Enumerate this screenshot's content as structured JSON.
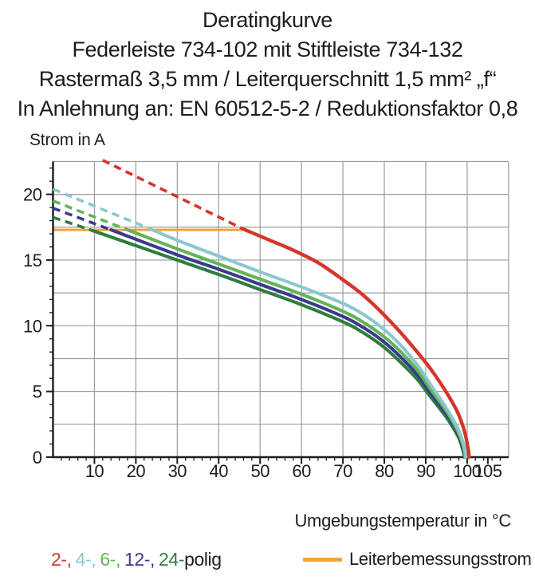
{
  "title": {
    "lines": [
      "Deratingkurve",
      "Federleiste 734-102 mit Stiftleiste 734-132",
      "Rastermaß 3,5 mm / Leiterquerschnitt 1,5 mm² „f“",
      "In Anlehnung an: EN 60512-5-2 / Reduktionsfaktor 0,8"
    ]
  },
  "chart_data": {
    "type": "line",
    "title": "Deratingkurve",
    "xlabel": "Umgebungstemperatur in °C",
    "ylabel": "Strom in A",
    "xlim": [
      0,
      110.5
    ],
    "ylim": [
      0,
      22.5
    ],
    "grid": "on",
    "x_major_ticks": [
      10,
      20,
      30,
      40,
      50,
      60,
      70,
      80,
      90,
      100,
      105
    ],
    "y_major_ticks": [
      0,
      5,
      10,
      15,
      20
    ],
    "x_minor_step": 2,
    "y_minor_step": 1,
    "x_gridline_step": 10,
    "y_gridline_step": 2.5,
    "grid_color": "#9b9b9b",
    "axis_color": "#1d1d1b",
    "series": [
      {
        "name": "2-polig",
        "color": "#d6352b",
        "dashed": [
          [
            12,
            22.6
          ],
          [
            46,
            17.35
          ]
        ],
        "solid": [
          [
            46,
            17.35
          ],
          [
            52,
            16.55
          ],
          [
            58,
            15.75
          ],
          [
            64,
            14.8
          ],
          [
            70,
            13.5
          ],
          [
            75,
            12.3
          ],
          [
            80,
            10.8
          ],
          [
            85,
            9.1
          ],
          [
            90,
            7.2
          ],
          [
            93,
            5.9
          ],
          [
            96,
            4.4
          ],
          [
            98,
            3.2
          ],
          [
            99.5,
            1.8
          ],
          [
            100.3,
            0.5
          ],
          [
            100.45,
            0
          ]
        ]
      },
      {
        "name": "4-polig",
        "color": "#8ac8cb",
        "dashed": [
          [
            0,
            20.4
          ],
          [
            24,
            17.3
          ]
        ],
        "solid": [
          [
            24,
            17.3
          ],
          [
            30,
            16.5
          ],
          [
            40,
            15.3
          ],
          [
            50,
            14.1
          ],
          [
            60,
            12.95
          ],
          [
            70,
            11.7
          ],
          [
            75,
            10.85
          ],
          [
            80,
            9.7
          ],
          [
            84,
            8.5
          ],
          [
            88,
            7.0
          ],
          [
            91,
            5.6
          ],
          [
            94,
            4.2
          ],
          [
            96,
            3.2
          ],
          [
            98,
            2.0
          ],
          [
            99.3,
            0.8
          ],
          [
            99.65,
            0
          ]
        ]
      },
      {
        "name": "6-polig",
        "color": "#62b456",
        "dashed": [
          [
            0,
            19.5
          ],
          [
            18,
            17.3
          ]
        ],
        "solid": [
          [
            18,
            17.3
          ],
          [
            30,
            15.85
          ],
          [
            40,
            14.7
          ],
          [
            50,
            13.55
          ],
          [
            60,
            12.4
          ],
          [
            70,
            11.1
          ],
          [
            75,
            10.25
          ],
          [
            80,
            9.15
          ],
          [
            84,
            8.0
          ],
          [
            88,
            6.6
          ],
          [
            91,
            5.25
          ],
          [
            94,
            3.95
          ],
          [
            96,
            3.0
          ],
          [
            98,
            1.8
          ],
          [
            99.2,
            0.7
          ],
          [
            99.5,
            0
          ]
        ]
      },
      {
        "name": "12-polig",
        "color": "#3a3a8e",
        "dashed": [
          [
            0,
            18.95
          ],
          [
            14,
            17.3
          ]
        ],
        "solid": [
          [
            14,
            17.3
          ],
          [
            30,
            15.4
          ],
          [
            40,
            14.3
          ],
          [
            50,
            13.15
          ],
          [
            60,
            12.0
          ],
          [
            70,
            10.7
          ],
          [
            75,
            9.85
          ],
          [
            80,
            8.75
          ],
          [
            84,
            7.6
          ],
          [
            88,
            6.25
          ],
          [
            91,
            4.95
          ],
          [
            94,
            3.7
          ],
          [
            96,
            2.8
          ],
          [
            98,
            1.65
          ],
          [
            99.1,
            0.6
          ],
          [
            99.4,
            0
          ]
        ]
      },
      {
        "name": "24-polig",
        "color": "#2f7d3e",
        "dashed": [
          [
            0,
            18.25
          ],
          [
            9,
            17.3
          ]
        ],
        "solid": [
          [
            9,
            17.3
          ],
          [
            30,
            15.0
          ],
          [
            40,
            13.9
          ],
          [
            50,
            12.75
          ],
          [
            60,
            11.6
          ],
          [
            70,
            10.3
          ],
          [
            75,
            9.45
          ],
          [
            80,
            8.35
          ],
          [
            84,
            7.2
          ],
          [
            88,
            5.9
          ],
          [
            91,
            4.65
          ],
          [
            94,
            3.45
          ],
          [
            96,
            2.55
          ],
          [
            98,
            1.45
          ],
          [
            99,
            0.5
          ],
          [
            99.3,
            0
          ]
        ]
      }
    ],
    "reference_line": {
      "label": "Leiterbemessungsstrom",
      "value": 17.3,
      "x_range": [
        0,
        46
      ],
      "color": "#f2a23f"
    }
  },
  "legend": {
    "pole_segments": [
      {
        "label": "2-,",
        "color": "#d6352b"
      },
      {
        "label": "4-,",
        "color": "#8ac8cb"
      },
      {
        "label": "6-,",
        "color": "#62b456"
      },
      {
        "label": "12-,",
        "color": "#3a3a8e"
      },
      {
        "label": "24-",
        "color": "#2f7d3e"
      }
    ],
    "suffix": "polig",
    "suffix_color": "#1d1d1b",
    "reference_label": "Leiterbemessungsstrom"
  }
}
